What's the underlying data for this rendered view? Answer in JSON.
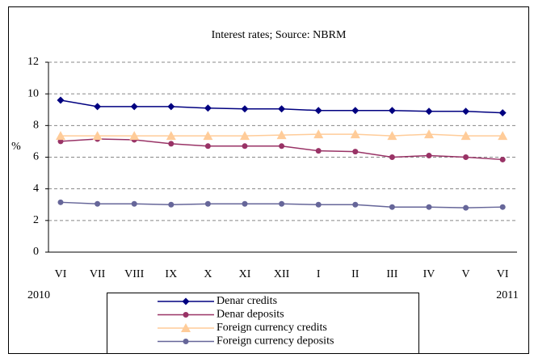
{
  "chart_data": {
    "type": "line",
    "title": "Interest rates; Source: NBRM",
    "categories": [
      "VI",
      "VII",
      "VIII",
      "IX",
      "X",
      "XI",
      "XII",
      "I",
      "II",
      "III",
      "IV",
      "V",
      "VI"
    ],
    "year_labels": [
      "2010",
      "2011"
    ],
    "ylabel": "%",
    "ylim": [
      0,
      12
    ],
    "yticks": [
      0,
      2,
      4,
      6,
      8,
      10,
      12
    ],
    "grid": true,
    "series": [
      {
        "name": "Denar credits",
        "color": "#000080",
        "marker": "diamond",
        "values": [
          9.6,
          9.2,
          9.2,
          9.2,
          9.1,
          9.05,
          9.05,
          8.95,
          8.95,
          8.95,
          8.9,
          8.9,
          8.8
        ]
      },
      {
        "name": "Denar deposits",
        "color": "#993366",
        "marker": "circle",
        "values": [
          7.0,
          7.15,
          7.1,
          6.85,
          6.7,
          6.7,
          6.7,
          6.4,
          6.35,
          6.0,
          6.1,
          6.0,
          5.85
        ]
      },
      {
        "name": "Foreign currency credits",
        "color": "#FFCC99",
        "marker": "triangle",
        "values": [
          7.35,
          7.35,
          7.35,
          7.35,
          7.35,
          7.35,
          7.4,
          7.45,
          7.45,
          7.35,
          7.45,
          7.35,
          7.35
        ]
      },
      {
        "name": "Foreign currency deposits",
        "color": "#666699",
        "marker": "circle",
        "values": [
          3.15,
          3.05,
          3.05,
          3.0,
          3.05,
          3.05,
          3.05,
          3.0,
          3.0,
          2.85,
          2.85,
          2.8,
          2.85
        ]
      }
    ]
  }
}
